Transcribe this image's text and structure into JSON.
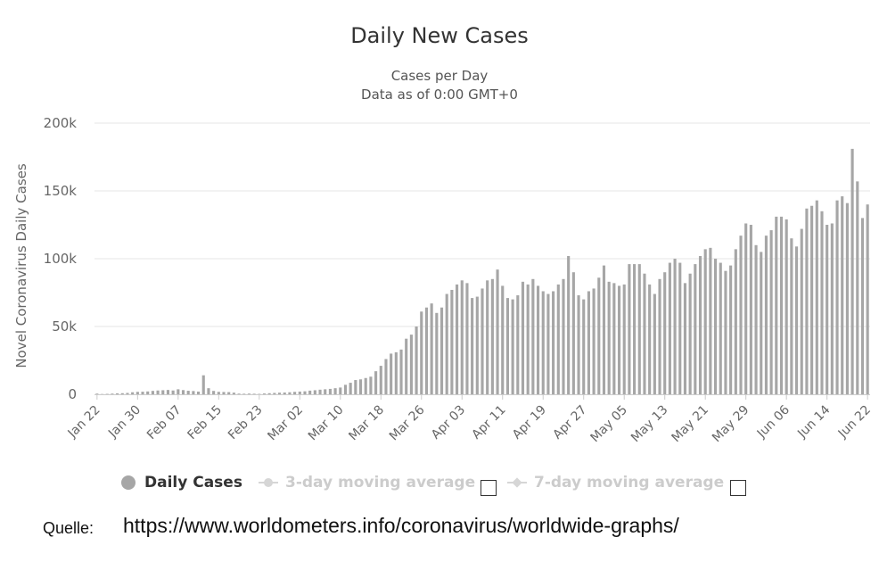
{
  "header": {
    "title": "Daily New Cases",
    "subtitle_line1": "Cases per Day",
    "subtitle_line2": "Data as of 0:00 GMT+0"
  },
  "legend": {
    "daily_label": "Daily Cases",
    "avg3_label": "3-day moving average",
    "avg7_label": "7-day moving average"
  },
  "source": {
    "label": "Quelle:",
    "url": "https://www.worldometers.info/coronavirus/worldwide-graphs/"
  },
  "colors": {
    "bar": "#a6a6a6",
    "grid": "#e6e6e6",
    "axis_text": "#666666",
    "legend_active": "#333333",
    "legend_inactive": "#cccccc"
  },
  "chart_data": {
    "type": "bar",
    "title": "Daily New Cases",
    "subtitle": "Cases per Day",
    "ylabel": "Novel Coronavirus Daily Cases",
    "xlabel": "",
    "ylim": [
      0,
      200000
    ],
    "y_ticks": [
      0,
      50000,
      100000,
      150000,
      200000
    ],
    "y_tick_labels": [
      "0",
      "50k",
      "100k",
      "150k",
      "200k"
    ],
    "x_tick_labels": [
      "Jan 22",
      "Jan 30",
      "Feb 07",
      "Feb 15",
      "Feb 23",
      "Mar 02",
      "Mar 10",
      "Mar 18",
      "Mar 26",
      "Apr 03",
      "Apr 11",
      "Apr 19",
      "Apr 27",
      "May 05",
      "May 13",
      "May 21",
      "May 29",
      "Jun 06",
      "Jun 14",
      "Jun 22"
    ],
    "grid": true,
    "legend_position": "bottom",
    "series": [
      {
        "name": "Daily Cases",
        "values": [
          500,
          200,
          300,
          500,
          700,
          800,
          1000,
          1500,
          1800,
          1900,
          2100,
          2500,
          2800,
          3000,
          3200,
          2800,
          3700,
          3100,
          2600,
          2400,
          2000,
          14000,
          4500,
          2500,
          1800,
          1700,
          1600,
          1200,
          500,
          400,
          500,
          400,
          300,
          600,
          800,
          1000,
          1200,
          1300,
          1500,
          1800,
          2000,
          2200,
          2700,
          3000,
          3400,
          3700,
          4000,
          4500,
          5000,
          7000,
          8500,
          10500,
          11000,
          12000,
          13000,
          17000,
          21000,
          26000,
          30000,
          31000,
          33000,
          41000,
          44000,
          50000,
          61000,
          64000,
          67000,
          60000,
          64000,
          74000,
          77000,
          81000,
          84000,
          82000,
          71000,
          72000,
          78000,
          84000,
          85000,
          92000,
          80000,
          71000,
          70000,
          73000,
          83000,
          81000,
          85000,
          80000,
          76000,
          74000,
          76000,
          81000,
          85000,
          102000,
          90000,
          73000,
          70000,
          76000,
          78000,
          86000,
          95000,
          83000,
          82000,
          80000,
          81000,
          96000,
          96000,
          96000,
          89000,
          81000,
          74000,
          85000,
          90000,
          97000,
          100000,
          97000,
          82000,
          89000,
          96000,
          102000,
          107000,
          108000,
          100000,
          97000,
          91000,
          95000,
          107000,
          117000,
          126000,
          125000,
          110000,
          105000,
          117000,
          121000,
          131000,
          131000,
          129000,
          115000,
          109000,
          122000,
          137000,
          139000,
          143000,
          135000,
          125000,
          126000,
          143000,
          146000,
          141000,
          181000,
          157000,
          130000,
          140000
        ]
      }
    ]
  }
}
